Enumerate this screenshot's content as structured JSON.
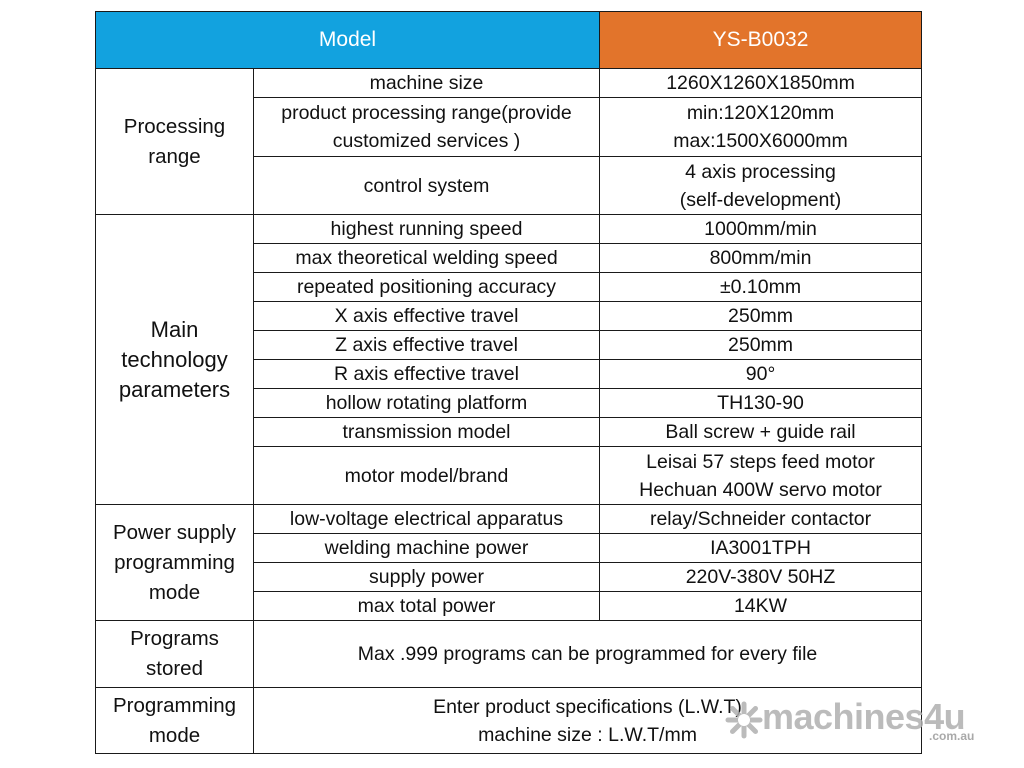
{
  "header": {
    "label": "Model",
    "value": "YS-B0032"
  },
  "colors": {
    "header_blue": "#12a2df",
    "header_orange": "#e2742b"
  },
  "groups": [
    {
      "name": [
        "Processing",
        "range"
      ]
    },
    {
      "name": [
        "Main",
        "technology",
        "parameters"
      ]
    },
    {
      "name": [
        "Power supply",
        "programming",
        "mode"
      ]
    },
    {
      "name": [
        "Programs",
        "stored"
      ]
    },
    {
      "name": [
        "Programming",
        "mode"
      ]
    }
  ],
  "rows": [
    {
      "param": [
        "machine size"
      ],
      "value": [
        "1260X1260X1850mm"
      ]
    },
    {
      "param": [
        "product processing range(provide",
        "customized services )"
      ],
      "value": [
        "min:120X120mm",
        "max:1500X6000mm"
      ]
    },
    {
      "param": [
        "control system"
      ],
      "value": [
        "4 axis processing",
        "(self-development)"
      ]
    },
    {
      "param": [
        "highest running speed"
      ],
      "value": [
        "1000mm/min"
      ]
    },
    {
      "param": [
        "max theoretical welding speed"
      ],
      "value": [
        "800mm/min"
      ]
    },
    {
      "param": [
        "repeated positioning accuracy"
      ],
      "value": [
        "±0.10mm"
      ]
    },
    {
      "param": [
        "X axis effective travel"
      ],
      "value": [
        "250mm"
      ]
    },
    {
      "param": [
        "Z axis effective travel"
      ],
      "value": [
        "250mm"
      ]
    },
    {
      "param": [
        "R axis effective travel"
      ],
      "value": [
        "90°"
      ]
    },
    {
      "param": [
        "hollow rotating platform"
      ],
      "value": [
        "TH130-90"
      ]
    },
    {
      "param": [
        "transmission model"
      ],
      "value": [
        "Ball screw + guide rail"
      ]
    },
    {
      "param": [
        "motor model/brand"
      ],
      "value": [
        "Leisai 57 steps feed motor",
        "Hechuan 400W servo motor"
      ]
    },
    {
      "param": [
        "low-voltage electrical apparatus"
      ],
      "value": [
        "relay/Schneider contactor"
      ]
    },
    {
      "param": [
        "welding machine power"
      ],
      "value": [
        "IA3001TPH"
      ]
    },
    {
      "param": [
        "supply power"
      ],
      "value": [
        "220V-380V 50HZ"
      ]
    },
    {
      "param": [
        "max total power"
      ],
      "value": [
        "14KW"
      ]
    }
  ],
  "programs_stored": {
    "text": "Max .999 programs can be programmed for every file"
  },
  "programming_mode": {
    "lines": [
      "Enter product specifications (L.W.T)",
      "machine size : L.W.T/mm"
    ]
  },
  "watermark": {
    "brand": "machines4u",
    "sub": ".com.au"
  }
}
